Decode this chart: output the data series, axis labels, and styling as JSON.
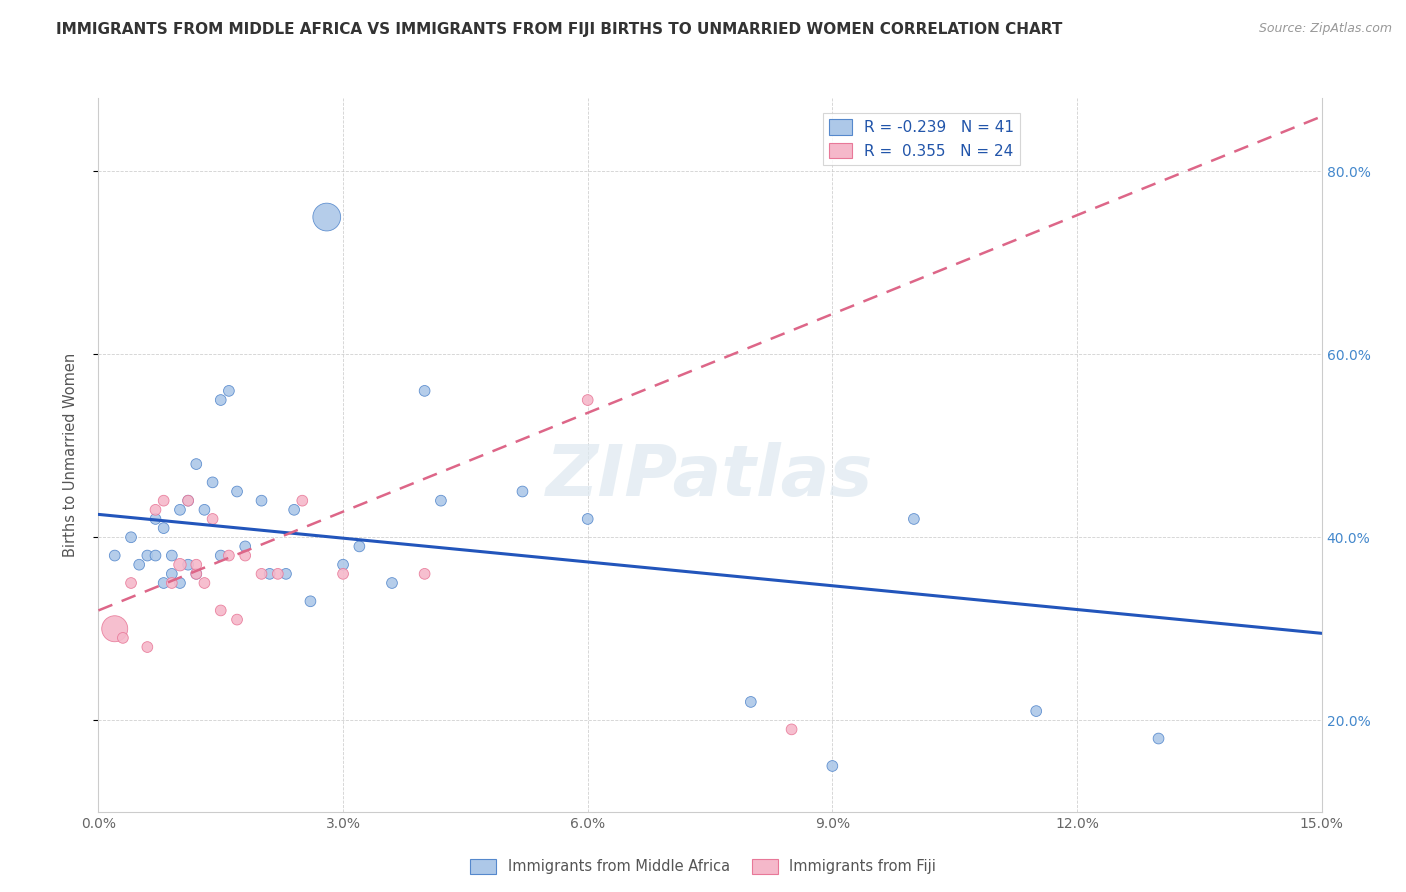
{
  "title": "IMMIGRANTS FROM MIDDLE AFRICA VS IMMIGRANTS FROM FIJI BIRTHS TO UNMARRIED WOMEN CORRELATION CHART",
  "source": "Source: ZipAtlas.com",
  "ylabel": "Births to Unmarried Women",
  "xlim": [
    0.0,
    0.15
  ],
  "ylim": [
    0.1,
    0.88
  ],
  "xticks": [
    0.0,
    0.03,
    0.06,
    0.09,
    0.12,
    0.15
  ],
  "yticks": [
    0.2,
    0.4,
    0.6,
    0.8
  ],
  "ytick_labels_right": [
    "20.0%",
    "40.0%",
    "60.0%",
    "80.0%"
  ],
  "xtick_labels": [
    "0.0%",
    "3.0%",
    "6.0%",
    "9.0%",
    "12.0%",
    "15.0%"
  ],
  "legend1_label": "R = -0.239   N = 41",
  "legend2_label": "R =  0.355   N = 24",
  "legend1_facecolor": "#adc8e8",
  "legend2_facecolor": "#f5b8ca",
  "blue_dot_color": "#adc8e8",
  "pink_dot_color": "#f5b8ca",
  "blue_edge_color": "#5588cc",
  "pink_edge_color": "#e87898",
  "blue_line_color": "#2255bb",
  "pink_line_color": "#dd6688",
  "watermark": "ZIPatlas",
  "blue_line_x0": 0.0,
  "blue_line_x1": 0.15,
  "blue_line_y0": 0.425,
  "blue_line_y1": 0.295,
  "pink_line_x0": 0.0,
  "pink_line_x1": 0.15,
  "pink_line_y0": 0.32,
  "pink_line_y1": 0.86,
  "blue_dots_x": [
    0.002,
    0.004,
    0.005,
    0.006,
    0.007,
    0.007,
    0.008,
    0.008,
    0.009,
    0.009,
    0.01,
    0.01,
    0.011,
    0.011,
    0.012,
    0.012,
    0.013,
    0.014,
    0.015,
    0.015,
    0.016,
    0.017,
    0.018,
    0.02,
    0.021,
    0.023,
    0.024,
    0.026,
    0.028,
    0.03,
    0.032,
    0.036,
    0.04,
    0.042,
    0.052,
    0.06,
    0.08,
    0.09,
    0.1,
    0.115,
    0.13
  ],
  "blue_dots_y": [
    0.38,
    0.4,
    0.37,
    0.38,
    0.38,
    0.42,
    0.35,
    0.41,
    0.36,
    0.38,
    0.43,
    0.35,
    0.44,
    0.37,
    0.48,
    0.36,
    0.43,
    0.46,
    0.55,
    0.38,
    0.56,
    0.45,
    0.39,
    0.44,
    0.36,
    0.36,
    0.43,
    0.33,
    0.75,
    0.37,
    0.39,
    0.35,
    0.56,
    0.44,
    0.45,
    0.42,
    0.22,
    0.15,
    0.42,
    0.21,
    0.18
  ],
  "blue_dots_size": [
    60,
    60,
    60,
    60,
    60,
    60,
    60,
    60,
    60,
    60,
    60,
    60,
    60,
    60,
    60,
    60,
    60,
    60,
    60,
    60,
    60,
    60,
    60,
    60,
    60,
    60,
    60,
    60,
    400,
    60,
    60,
    60,
    60,
    60,
    60,
    60,
    60,
    60,
    60,
    60,
    60
  ],
  "pink_dots_x": [
    0.002,
    0.003,
    0.004,
    0.006,
    0.007,
    0.008,
    0.009,
    0.01,
    0.011,
    0.012,
    0.012,
    0.013,
    0.014,
    0.015,
    0.016,
    0.017,
    0.018,
    0.02,
    0.022,
    0.025,
    0.03,
    0.04,
    0.06,
    0.085
  ],
  "pink_dots_y": [
    0.3,
    0.29,
    0.35,
    0.28,
    0.43,
    0.44,
    0.35,
    0.37,
    0.44,
    0.36,
    0.37,
    0.35,
    0.42,
    0.32,
    0.38,
    0.31,
    0.38,
    0.36,
    0.36,
    0.44,
    0.36,
    0.36,
    0.55,
    0.19
  ],
  "pink_dots_size": [
    350,
    60,
    60,
    60,
    60,
    60,
    60,
    80,
    60,
    60,
    60,
    60,
    60,
    60,
    60,
    60,
    60,
    60,
    60,
    60,
    60,
    60,
    60,
    60
  ]
}
